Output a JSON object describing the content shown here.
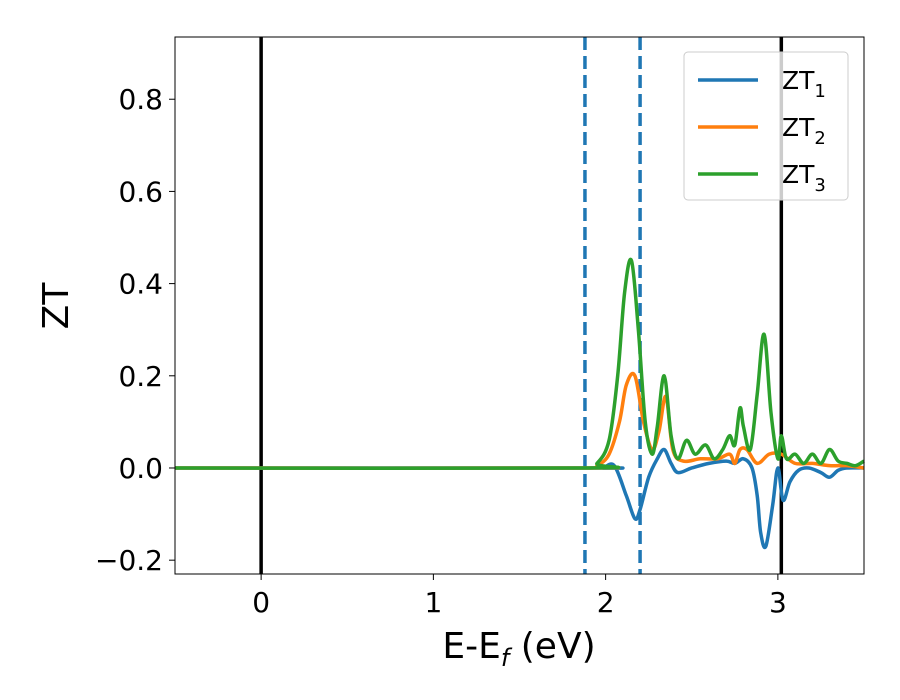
{
  "chart_data": {
    "type": "line",
    "xlabel": "E-E",
    "xlabel_sub": "f",
    "xlabel_unit": " (eV)",
    "ylabel": "ZT",
    "xlim": [
      -0.5,
      3.5
    ],
    "ylim": [
      -0.23,
      0.935
    ],
    "xticks": [
      0,
      1,
      2,
      3
    ],
    "xtick_labels": [
      "0",
      "1",
      "2",
      "3"
    ],
    "yticks": [
      -0.2,
      0.0,
      0.2,
      0.4,
      0.6,
      0.8
    ],
    "ytick_labels": [
      "−0.2",
      "0.0",
      "0.2",
      "0.4",
      "0.6",
      "0.8"
    ],
    "grid": false,
    "legend_position": "top-right",
    "vlines": [
      {
        "x": 0.0,
        "style": "solid",
        "color": "#000000"
      },
      {
        "x": 3.02,
        "style": "solid",
        "color": "#000000"
      },
      {
        "x": 1.88,
        "style": "dashed",
        "color": "#1f77b4"
      },
      {
        "x": 2.2,
        "style": "dashed",
        "color": "#1f77b4"
      }
    ],
    "series": [
      {
        "name": "ZT",
        "name_sub": "1",
        "color": "#1f77b4",
        "x": [
          -0.5,
          1.9,
          1.98,
          2.05,
          2.12,
          2.17,
          2.2,
          2.25,
          2.3,
          2.34,
          2.38,
          2.42,
          2.5,
          2.6,
          2.7,
          2.75,
          2.8,
          2.85,
          2.88,
          2.9,
          2.93,
          2.97,
          3.0,
          3.03,
          3.07,
          3.12,
          3.18,
          3.25,
          3.3,
          3.35,
          3.4,
          3.5
        ],
        "y": [
          0.0,
          0.0,
          0.0,
          0.005,
          -0.06,
          -0.11,
          -0.09,
          -0.02,
          0.02,
          0.04,
          0.01,
          -0.01,
          0.0,
          0.01,
          0.015,
          0.01,
          0.02,
          0.0,
          -0.06,
          -0.14,
          -0.17,
          -0.08,
          0.0,
          -0.07,
          -0.03,
          -0.005,
          0.0,
          -0.01,
          -0.02,
          -0.005,
          0.0,
          0.0
        ]
      },
      {
        "name": "ZT",
        "name_sub": "2",
        "color": "#ff7f0e",
        "x": [
          -0.5,
          1.88,
          1.95,
          2.02,
          2.08,
          2.12,
          2.17,
          2.22,
          2.27,
          2.31,
          2.35,
          2.39,
          2.45,
          2.55,
          2.65,
          2.72,
          2.75,
          2.78,
          2.82,
          2.88,
          2.95,
          3.02,
          3.1,
          3.2,
          3.3,
          3.4,
          3.5
        ],
        "y": [
          0.0,
          0.0,
          0.005,
          0.03,
          0.1,
          0.18,
          0.2,
          0.1,
          0.04,
          0.08,
          0.155,
          0.04,
          0.015,
          0.02,
          0.02,
          0.03,
          0.01,
          0.04,
          0.04,
          0.01,
          0.03,
          0.03,
          0.01,
          0.01,
          0.005,
          0.005,
          0.0
        ]
      },
      {
        "name": "ZT",
        "name_sub": "3",
        "color": "#2ca02c",
        "x": [
          -0.5,
          1.88,
          1.95,
          2.02,
          2.07,
          2.11,
          2.15,
          2.19,
          2.23,
          2.27,
          2.3,
          2.34,
          2.38,
          2.42,
          2.47,
          2.52,
          2.58,
          2.63,
          2.68,
          2.72,
          2.75,
          2.78,
          2.8,
          2.84,
          2.88,
          2.92,
          2.96,
          3.0,
          3.02,
          3.05,
          3.1,
          3.15,
          3.2,
          3.25,
          3.3,
          3.35,
          3.4,
          3.45,
          3.5
        ],
        "y": [
          0.0,
          0.0,
          0.01,
          0.06,
          0.2,
          0.38,
          0.45,
          0.3,
          0.1,
          0.03,
          0.09,
          0.2,
          0.07,
          0.02,
          0.06,
          0.03,
          0.05,
          0.02,
          0.04,
          0.07,
          0.05,
          0.13,
          0.09,
          0.04,
          0.16,
          0.29,
          0.12,
          0.02,
          0.07,
          0.02,
          0.03,
          0.01,
          0.03,
          0.01,
          0.04,
          0.015,
          0.01,
          0.005,
          0.015
        ]
      }
    ]
  }
}
